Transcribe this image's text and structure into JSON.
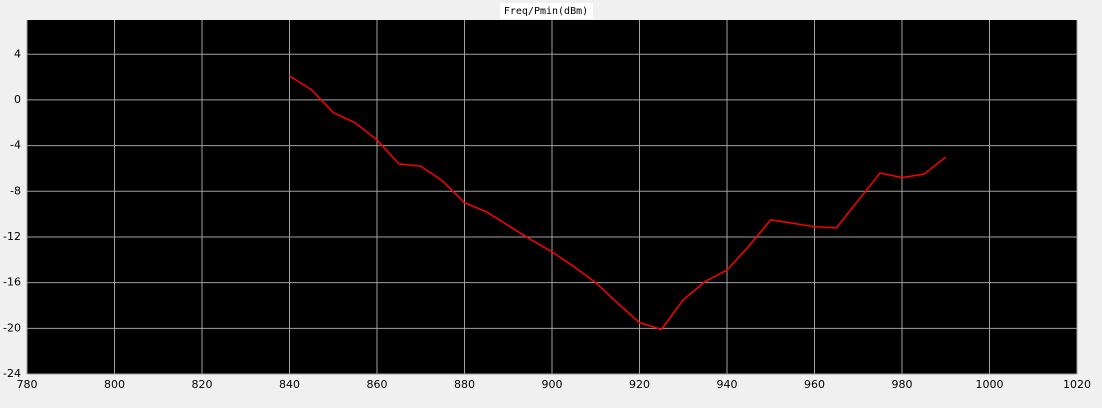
{
  "chart_data": {
    "type": "line",
    "title": "Freq/Pmin(dBm)",
    "x": [
      840,
      845,
      850,
      855,
      860,
      865,
      870,
      875,
      880,
      885,
      890,
      895,
      900,
      905,
      910,
      915,
      920,
      925,
      930,
      935,
      940,
      945,
      950,
      955,
      960,
      965,
      970,
      975,
      980,
      985,
      990
    ],
    "series": [
      {
        "color": "#ff0000",
        "values": [
          2.1,
          0.9,
          -1.1,
          -2.0,
          -3.5,
          -5.6,
          -5.8,
          -7.1,
          -9.0,
          -9.8,
          -11.0,
          -12.2,
          -13.3,
          -14.6,
          -16.0,
          -17.8,
          -19.5,
          -20.1,
          -17.5,
          -15.9,
          -14.9,
          -12.8,
          -10.5,
          -10.8,
          -11.1,
          -11.2,
          -8.8,
          -6.4,
          -6.8,
          -6.5,
          -5.0
        ]
      }
    ],
    "xlim": [
      780,
      1020
    ],
    "xticks": [
      780,
      800,
      820,
      840,
      860,
      880,
      900,
      920,
      940,
      960,
      980,
      1000,
      1020
    ],
    "ylim": [
      -24,
      7
    ],
    "yticks": [
      4,
      0,
      -4,
      -8,
      -12,
      -16,
      -20,
      -24
    ],
    "grid": true
  }
}
